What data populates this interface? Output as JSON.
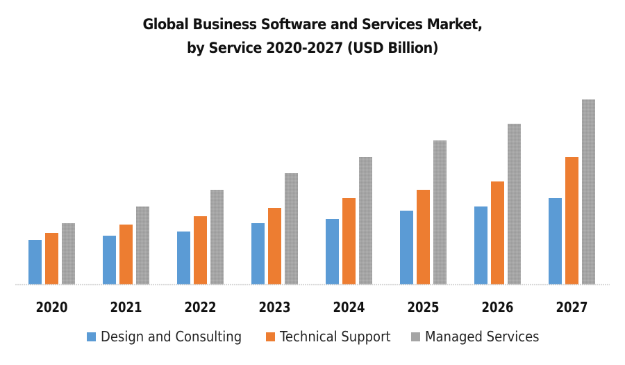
{
  "chart_data": {
    "type": "bar",
    "title": "Global Business Software and Services Market, by Service 2020-2027 (USD Billion)",
    "title_lines": [
      "Global Business Software and Services Market,",
      "by Service 2020-2027 (USD Billion)"
    ],
    "xlabel": "",
    "ylabel": "",
    "categories": [
      "2020",
      "2021",
      "2022",
      "2023",
      "2024",
      "2025",
      "2026",
      "2027"
    ],
    "series": [
      {
        "name": "Design and Consulting",
        "color": "#5b9bd5",
        "values": [
          6.4,
          7.0,
          7.6,
          8.8,
          9.4,
          10.6,
          11.2,
          12.4
        ]
      },
      {
        "name": "Technical Support",
        "color": "#ed7d31",
        "values": [
          7.4,
          8.6,
          9.8,
          11.0,
          12.4,
          13.6,
          14.8,
          18.3
        ]
      },
      {
        "name": "Managed Services",
        "color": "#a5a5a5",
        "values": [
          8.8,
          11.2,
          13.6,
          16.0,
          18.3,
          20.7,
          23.1,
          26.6
        ]
      }
    ],
    "ylim": [
      0,
      27.5
    ],
    "y_axis_visible": false,
    "grid": false,
    "legend_position": "bottom"
  }
}
